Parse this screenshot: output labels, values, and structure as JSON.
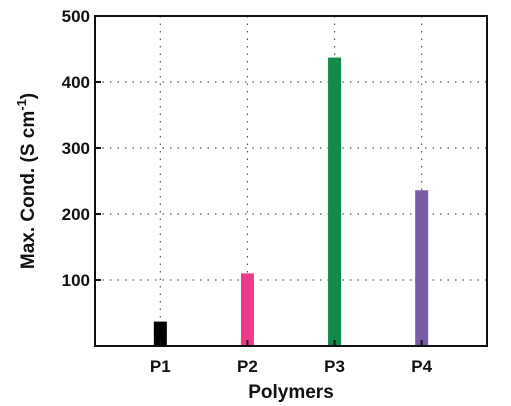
{
  "chart_data": {
    "type": "bar",
    "title": "",
    "xlabel": "Polymers",
    "ylabel": {
      "main": "Max. Cond. (S cm",
      "superscript": "-1",
      "close": ")"
    },
    "categories": [
      "P1",
      "P2",
      "P3",
      "P4"
    ],
    "values": [
      37,
      110,
      437,
      236
    ],
    "colors": [
      "#000000",
      "#ee3a8c",
      "#118a4a",
      "#7b5aa6"
    ],
    "ylim": [
      0,
      500
    ],
    "yticks": [
      "100",
      "200",
      "300",
      "400",
      "500"
    ],
    "grid": true,
    "legend": "none"
  }
}
